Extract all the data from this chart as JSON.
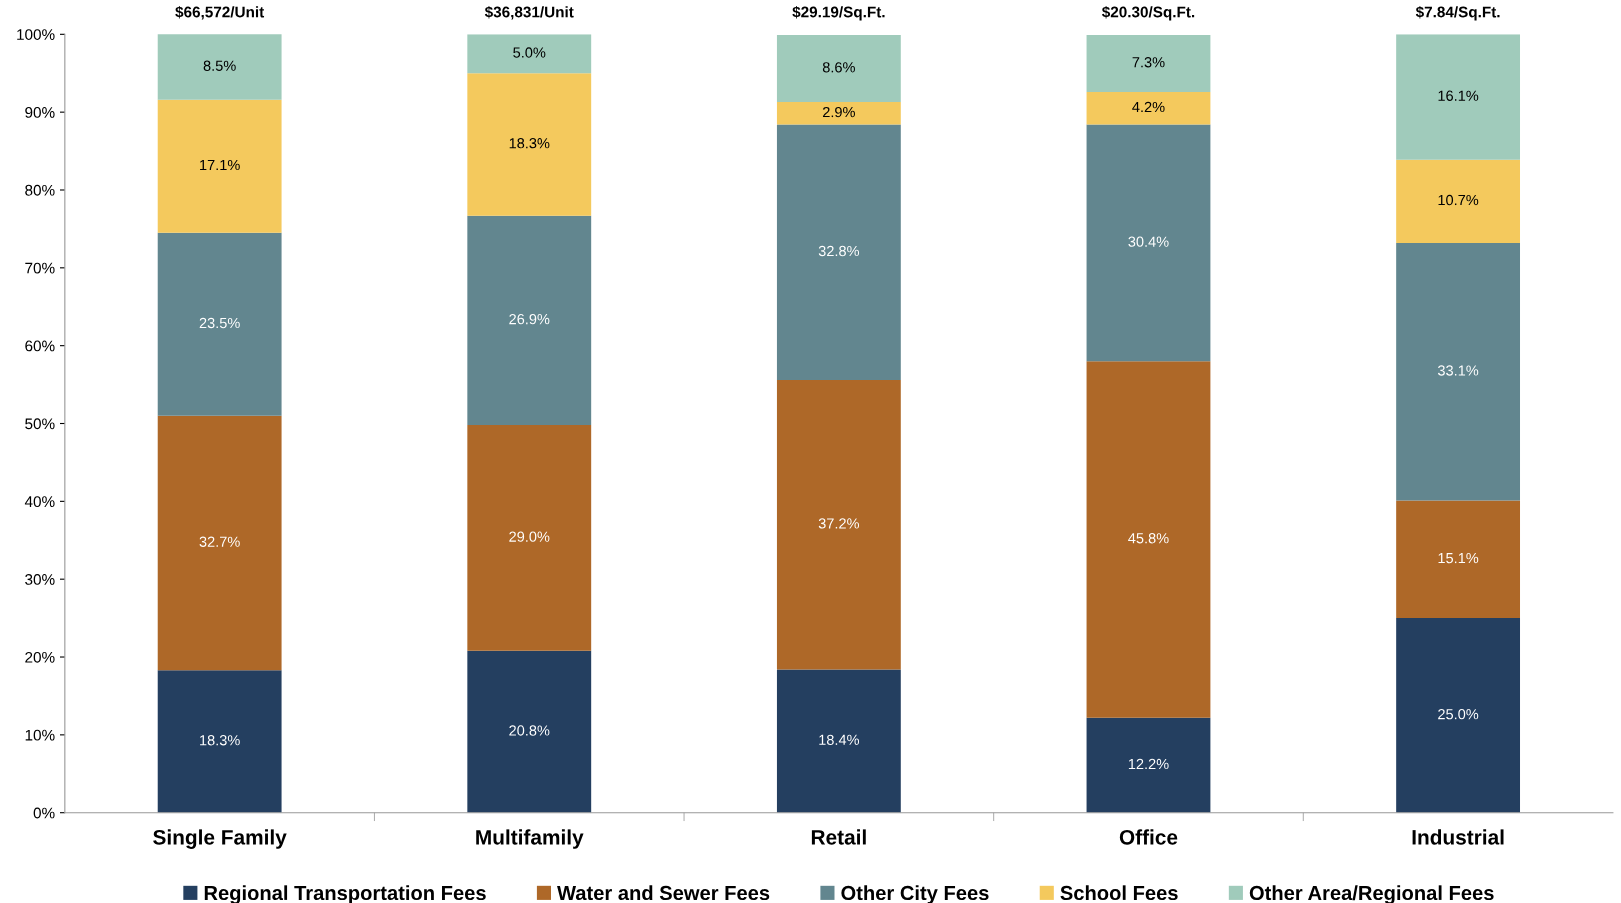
{
  "chart_data": {
    "type": "bar",
    "stacked": true,
    "categories": [
      "Single Family",
      "Multifamily",
      "Retail",
      "Office",
      "Industrial"
    ],
    "series": [
      {
        "name": "Regional Transportation Fees",
        "color": "#243f60",
        "values": [
          18.3,
          20.8,
          18.4,
          12.2,
          25.0
        ],
        "value_labels": [
          "18.3%",
          "20.8%",
          "18.4%",
          "12.2%",
          "25.0%"
        ]
      },
      {
        "name": "Water and Sewer Fees",
        "color": "#ae6828",
        "values": [
          32.7,
          29.0,
          37.2,
          45.8,
          15.1
        ],
        "value_labels": [
          "32.7%",
          "29.0%",
          "37.2%",
          "45.8%",
          "15.1%"
        ]
      },
      {
        "name": "Other City Fees",
        "color": "#62868f",
        "values": [
          23.5,
          26.9,
          32.8,
          30.4,
          33.1
        ],
        "value_labels": [
          "23.5%",
          "26.9%",
          "32.8%",
          "30.4%",
          "33.1%"
        ]
      },
      {
        "name": "School Fees",
        "color": "#f4c95d",
        "values": [
          17.1,
          18.3,
          2.9,
          4.2,
          10.7
        ],
        "value_labels": [
          "17.1%",
          "18.3%",
          "2.9%",
          "4.2%",
          "10.7%"
        ]
      },
      {
        "name": "Other Area/Regional Fees",
        "color": "#a0cbbb",
        "values": [
          8.5,
          5.0,
          8.6,
          7.3,
          16.1
        ],
        "value_labels": [
          "8.5%",
          "5.0%",
          "8.6%",
          "7.3%",
          "16.1%"
        ]
      }
    ],
    "annotations": [
      {
        "text": "$66,572/Unit",
        "x": "Single Family",
        "y": 100
      },
      {
        "text": "$36,831/Unit",
        "x": "Multifamily",
        "y": 100
      },
      {
        "text": "$29.19/Sq.Ft.",
        "x": "Retail",
        "y": 100
      },
      {
        "text": "$20.30/Sq.Ft.",
        "x": "Office",
        "y": 100
      },
      {
        "text": "$7.84/Sq.Ft.",
        "x": "Industrial",
        "y": 100
      }
    ],
    "ylim": [
      0,
      100
    ],
    "yticks": [
      {
        "value": 0,
        "label": "0%"
      },
      {
        "value": 10,
        "label": "10%"
      },
      {
        "value": 20,
        "label": "20%"
      },
      {
        "value": 30,
        "label": "30%"
      },
      {
        "value": 40,
        "label": "40%"
      },
      {
        "value": 50,
        "label": "50%"
      },
      {
        "value": 60,
        "label": "60%"
      },
      {
        "value": 70,
        "label": "70%"
      },
      {
        "value": 80,
        "label": "80%"
      },
      {
        "value": 90,
        "label": "90%"
      },
      {
        "value": 100,
        "label": "100%"
      }
    ],
    "grid": false,
    "legend": "bottom"
  }
}
